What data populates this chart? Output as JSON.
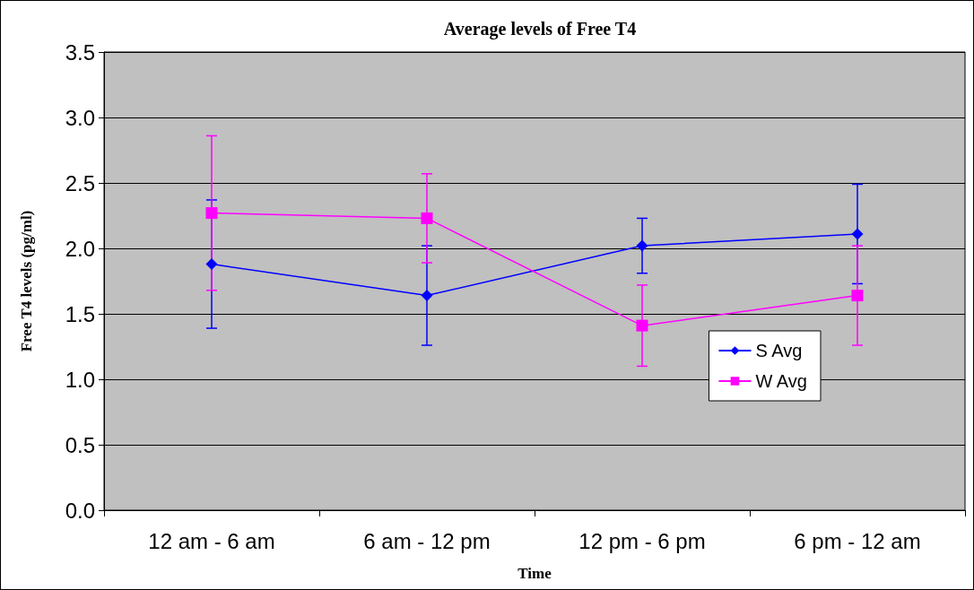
{
  "chart_data": {
    "type": "line",
    "title": "Average levels of Free T4",
    "xlabel": "Time",
    "ylabel": "Free T4 levels (pg/ml)",
    "categories": [
      "12 am - 6 am",
      "6 am - 12 pm",
      "12 pm - 6 pm",
      "6 pm - 12 am"
    ],
    "series": [
      {
        "name": "S Avg",
        "color": "#0000ff",
        "marker": "diamond",
        "values": [
          1.88,
          1.64,
          2.02,
          2.11
        ],
        "errors": [
          0.49,
          0.38,
          0.21,
          0.38
        ]
      },
      {
        "name": "W Avg",
        "color": "#ff00ff",
        "marker": "square",
        "values": [
          2.27,
          2.23,
          1.41,
          1.64
        ],
        "errors": [
          0.59,
          0.34,
          0.31,
          0.38
        ]
      }
    ],
    "ylim": [
      0,
      3.5
    ],
    "yticks": [
      {
        "value": 0,
        "label": "0.0"
      },
      0.5,
      {
        "value": 1,
        "label": "1.0"
      },
      1.5,
      {
        "value": 2,
        "label": "2.0"
      },
      2.5,
      {
        "value": 3,
        "label": "3.0"
      },
      3.5
    ],
    "grid": "y",
    "legend": "right"
  }
}
